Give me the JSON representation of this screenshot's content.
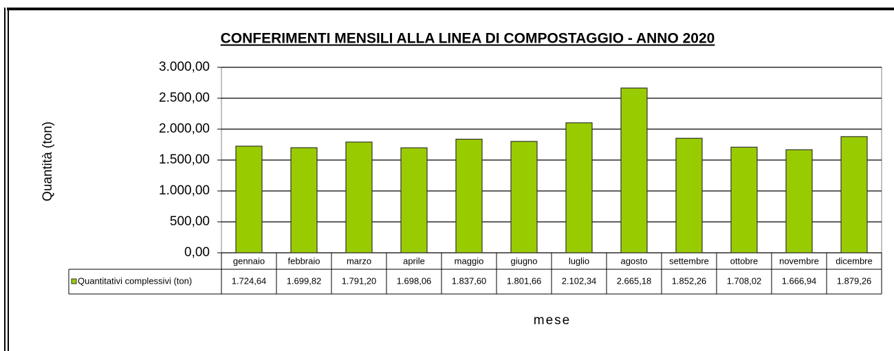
{
  "chart_data": {
    "type": "bar",
    "title": "CONFERIMENTI MENSILI ALLA LINEA DI COMPOSTAGGIO - ANNO 2020",
    "y_label": "Quantità (ton)",
    "x_label": "mese",
    "categories": [
      "gennaio",
      "febbraio",
      "marzo",
      "aprile",
      "maggio",
      "giugno",
      "luglio",
      "agosto",
      "settembre",
      "ottobre",
      "novembre",
      "dicembre"
    ],
    "series": [
      {
        "name": "Quantitativi complessivi (ton)",
        "color": "#99cc00",
        "values": [
          1724.64,
          1699.82,
          1791.2,
          1698.06,
          1837.6,
          1801.66,
          2102.34,
          2665.18,
          1852.26,
          1708.02,
          1666.94,
          1879.26
        ],
        "value_labels": [
          "1.724,64",
          "1.699,82",
          "1.791,20",
          "1.698,06",
          "1.837,60",
          "1.801,66",
          "2.102,34",
          "2.665,18",
          "1.852,26",
          "1.708,02",
          "1.666,94",
          "1.879,26"
        ]
      }
    ],
    "ylim": [
      0,
      3000
    ],
    "yticks": [
      {
        "value": 0,
        "label": "0,00"
      },
      {
        "value": 500,
        "label": "500,00"
      },
      {
        "value": 1000,
        "label": "1.000,00"
      },
      {
        "value": 1500,
        "label": "1.500,00"
      },
      {
        "value": 2000,
        "label": "2.000,00"
      },
      {
        "value": 2500,
        "label": "2.500,00"
      },
      {
        "value": 3000,
        "label": "3.000,00"
      }
    ],
    "grid": true
  }
}
